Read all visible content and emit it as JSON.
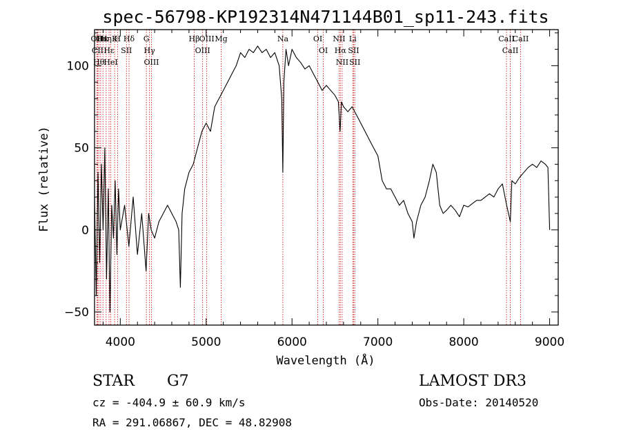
{
  "title": "spec-56798-KP192314N471144B01_sp11-243.fits",
  "info": {
    "class": "STAR",
    "subclass": "G7",
    "survey": "LAMOST DR3",
    "cz": "cz = -404.9 ± 60.9 km/s",
    "obs_date": "Obs-Date: 20140520",
    "coords": "RA = 291.06867, DEC =  48.82908"
  },
  "chart_data": {
    "type": "line",
    "xlabel": "Wavelength (Å)",
    "ylabel": "Flux (relative)",
    "xlim": [
      3700,
      9100
    ],
    "ylim": [
      -58,
      122
    ],
    "xticks": [
      4000,
      5000,
      6000,
      7000,
      8000,
      9000
    ],
    "yticks": [
      -50,
      0,
      50,
      100
    ],
    "grid": false,
    "line_color": "#000000",
    "marker_color": "#cc0000",
    "series": [
      {
        "x": [
          3700,
          3720,
          3740,
          3760,
          3780,
          3800,
          3820,
          3840,
          3860,
          3880,
          3900,
          3920,
          3940,
          3960,
          3980,
          4000,
          4050,
          4100,
          4150,
          4200,
          4250,
          4300,
          4330,
          4360,
          4400,
          4450,
          4500,
          4550,
          4600,
          4650,
          4680,
          4700,
          4720,
          4750,
          4800,
          4850,
          4900,
          4950,
          5000,
          5050,
          5100,
          5150,
          5200,
          5250,
          5300,
          5350,
          5400,
          5450,
          5500,
          5550,
          5600,
          5650,
          5700,
          5750,
          5800,
          5850,
          5880,
          5893,
          5905,
          5930,
          5960,
          6000,
          6050,
          6100,
          6150,
          6200,
          6250,
          6300,
          6350,
          6400,
          6450,
          6500,
          6540,
          6560,
          6575,
          6600,
          6650,
          6700,
          6750,
          6800,
          6850,
          6900,
          6950,
          7000,
          7050,
          7100,
          7150,
          7200,
          7250,
          7300,
          7350,
          7400,
          7420,
          7450,
          7500,
          7550,
          7600,
          7640,
          7680,
          7720,
          7760,
          7800,
          7850,
          7900,
          7950,
          8000,
          8050,
          8100,
          8150,
          8200,
          8250,
          8300,
          8350,
          8400,
          8450,
          8500,
          8542,
          8560,
          8600,
          8650,
          8700,
          8750,
          8800,
          8850,
          8900,
          8950,
          8980,
          9000
        ],
        "y": [
          20,
          -40,
          35,
          -20,
          40,
          0,
          50,
          -30,
          25,
          -50,
          15,
          -5,
          30,
          -15,
          25,
          0,
          15,
          -10,
          20,
          -15,
          10,
          -25,
          10,
          0,
          -5,
          5,
          10,
          15,
          10,
          5,
          0,
          -35,
          10,
          25,
          35,
          40,
          50,
          60,
          65,
          60,
          75,
          80,
          85,
          90,
          95,
          100,
          108,
          105,
          110,
          108,
          112,
          108,
          110,
          105,
          108,
          100,
          80,
          35,
          90,
          110,
          100,
          110,
          105,
          102,
          98,
          100,
          95,
          90,
          85,
          88,
          85,
          82,
          78,
          60,
          78,
          75,
          72,
          75,
          70,
          65,
          60,
          55,
          50,
          45,
          30,
          25,
          25,
          20,
          15,
          18,
          10,
          5,
          -5,
          5,
          15,
          20,
          30,
          40,
          35,
          15,
          10,
          12,
          15,
          12,
          8,
          15,
          14,
          16,
          18,
          18,
          20,
          22,
          20,
          25,
          28,
          15,
          5,
          30,
          28,
          32,
          35,
          38,
          40,
          38,
          42,
          40,
          38,
          0
        ]
      }
    ],
    "lines": [
      {
        "wl": 3727,
        "name": "OII"
      },
      {
        "wl": 3736,
        "name": "CII"
      },
      {
        "wl": 3750,
        "name": "Hθ"
      },
      {
        "wl": 3771,
        "name": "Hι"
      },
      {
        "wl": 3798,
        "name": "Hκ"
      },
      {
        "wl": 3835,
        "name": "Hη"
      },
      {
        "wl": 3869,
        "name": "Hε"
      },
      {
        "wl": 3889,
        "name": "HeI"
      },
      {
        "wl": 3934,
        "name": "K"
      },
      {
        "wl": 3968,
        "name": "H"
      },
      {
        "wl": 4072,
        "name": "SII"
      },
      {
        "wl": 4102,
        "name": "Hδ"
      },
      {
        "wl": 4304,
        "name": "G"
      },
      {
        "wl": 4340,
        "name": "Hγ"
      },
      {
        "wl": 4363,
        "name": "OIII"
      },
      {
        "wl": 4861,
        "name": "Hβ"
      },
      {
        "wl": 4959,
        "name": "OIII"
      },
      {
        "wl": 5007,
        "name": "OIII"
      },
      {
        "wl": 5175,
        "name": "Mg"
      },
      {
        "wl": 5893,
        "name": "Na"
      },
      {
        "wl": 6300,
        "name": "OI"
      },
      {
        "wl": 6364,
        "name": "OI"
      },
      {
        "wl": 6548,
        "name": "NII"
      },
      {
        "wl": 6563,
        "name": "Hα"
      },
      {
        "wl": 6584,
        "name": "NII"
      },
      {
        "wl": 6707,
        "name": "Li"
      },
      {
        "wl": 6717,
        "name": "SII"
      },
      {
        "wl": 6731,
        "name": "SII"
      },
      {
        "wl": 8498,
        "name": "CaII"
      },
      {
        "wl": 8542,
        "name": "CaII"
      },
      {
        "wl": 8662,
        "name": "CaII"
      }
    ]
  }
}
